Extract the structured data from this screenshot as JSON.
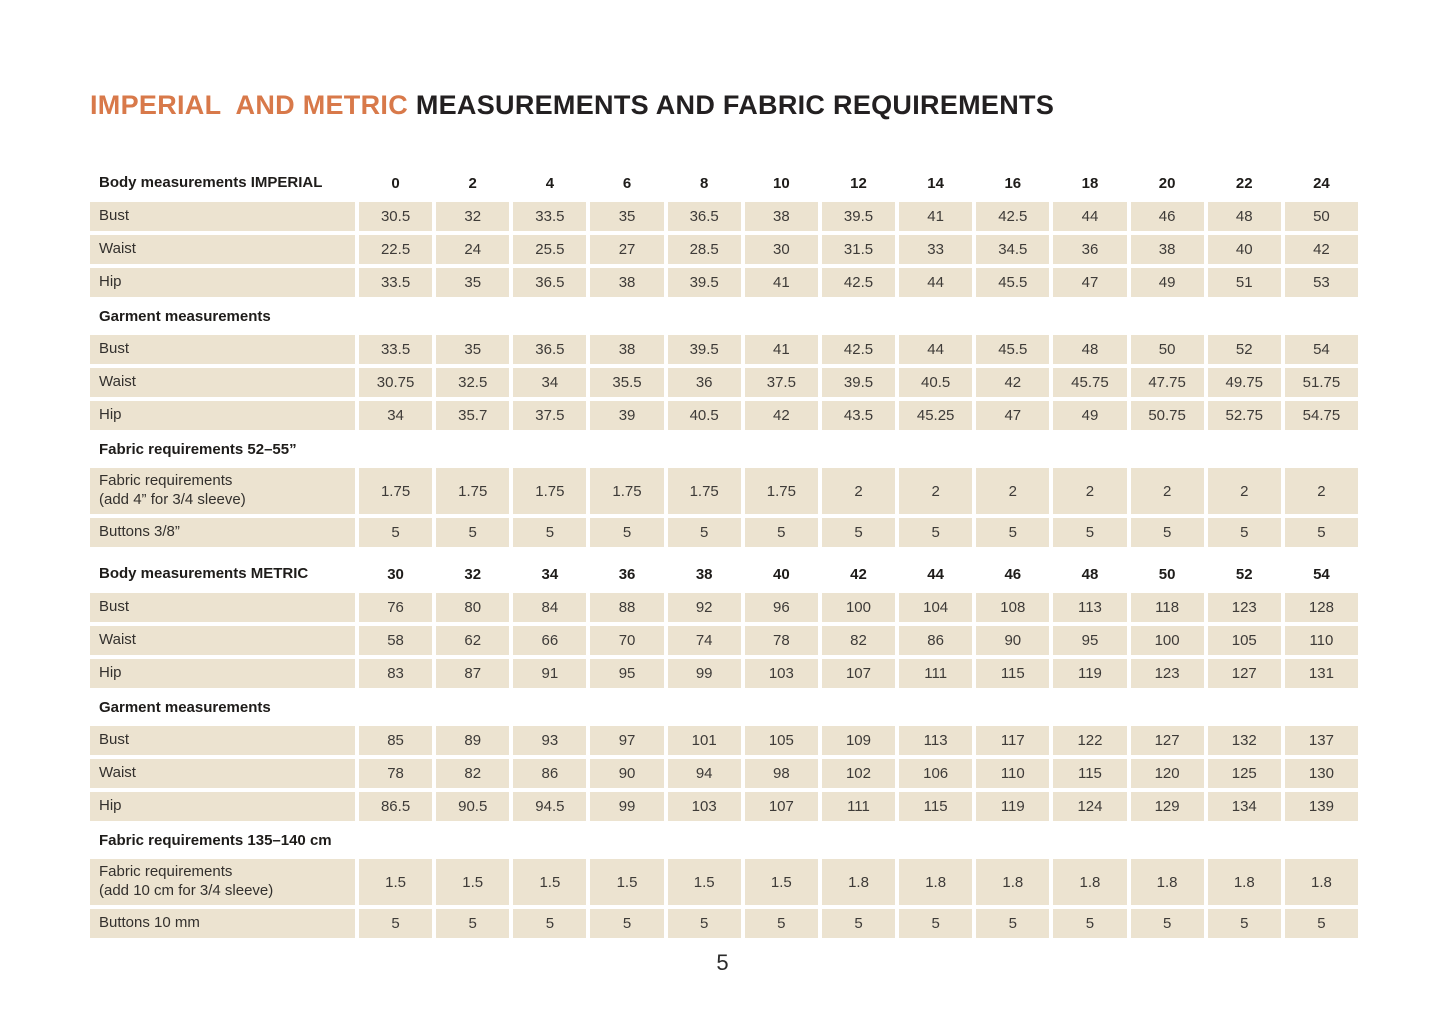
{
  "header": {
    "title_accent": "IMPERIAL  AND METRIC ",
    "title_main": "MEASUREMENTS AND FABRIC REQUIREMENTS"
  },
  "colors": {
    "accent_orange": "#D8794A",
    "cell_beige": "#ECE3D0",
    "text_dark": "#232021"
  },
  "footer": {
    "page_number": "5"
  },
  "table": {
    "sections": [
      {
        "kind": "size-header",
        "label": "Body measurements IMPERIAL",
        "values": [
          "0",
          "2",
          "4",
          "6",
          "8",
          "10",
          "12",
          "14",
          "16",
          "18",
          "20",
          "22",
          "24"
        ]
      },
      {
        "kind": "data",
        "label": "Bust",
        "values": [
          "30.5",
          "32",
          "33.5",
          "35",
          "36.5",
          "38",
          "39.5",
          "41",
          "42.5",
          "44",
          "46",
          "48",
          "50"
        ]
      },
      {
        "kind": "data",
        "label": "Waist",
        "values": [
          "22.5",
          "24",
          "25.5",
          "27",
          "28.5",
          "30",
          "31.5",
          "33",
          "34.5",
          "36",
          "38",
          "40",
          "42"
        ]
      },
      {
        "kind": "data",
        "label": "Hip",
        "values": [
          "33.5",
          "35",
          "36.5",
          "38",
          "39.5",
          "41",
          "42.5",
          "44",
          "45.5",
          "47",
          "49",
          "51",
          "53"
        ]
      },
      {
        "kind": "heading",
        "label": "Garment measurements"
      },
      {
        "kind": "data",
        "label": "Bust",
        "values": [
          "33.5",
          "35",
          "36.5",
          "38",
          "39.5",
          "41",
          "42.5",
          "44",
          "45.5",
          "48",
          "50",
          "52",
          "54"
        ]
      },
      {
        "kind": "data",
        "label": "Waist",
        "values": [
          "30.75",
          "32.5",
          "34",
          "35.5",
          "36",
          "37.5",
          "39.5",
          "40.5",
          "42",
          "45.75",
          "47.75",
          "49.75",
          "51.75"
        ]
      },
      {
        "kind": "data",
        "label": "Hip",
        "values": [
          "34",
          "35.7",
          "37.5",
          "39",
          "40.5",
          "42",
          "43.5",
          "45.25",
          "47",
          "49",
          "50.75",
          "52.75",
          "54.75"
        ]
      },
      {
        "kind": "heading",
        "label": "Fabric requirements 52–55”"
      },
      {
        "kind": "data",
        "tall": true,
        "label": "Fabric requirements",
        "sublabel": "(add 4” for 3/4 sleeve)",
        "values": [
          "1.75",
          "1.75",
          "1.75",
          "1.75",
          "1.75",
          "1.75",
          "2",
          "2",
          "2",
          "2",
          "2",
          "2",
          "2"
        ]
      },
      {
        "kind": "data",
        "label": "Buttons 3/8”",
        "values": [
          "5",
          "5",
          "5",
          "5",
          "5",
          "5",
          "5",
          "5",
          "5",
          "5",
          "5",
          "5",
          "5"
        ]
      },
      {
        "kind": "size-header",
        "group_gap": true,
        "label": "Body measurements METRIC",
        "values": [
          "30",
          "32",
          "34",
          "36",
          "38",
          "40",
          "42",
          "44",
          "46",
          "48",
          "50",
          "52",
          "54"
        ]
      },
      {
        "kind": "data",
        "label": "Bust",
        "values": [
          "76",
          "80",
          "84",
          "88",
          "92",
          "96",
          "100",
          "104",
          "108",
          "113",
          "118",
          "123",
          "128"
        ]
      },
      {
        "kind": "data",
        "label": "Waist",
        "values": [
          "58",
          "62",
          "66",
          "70",
          "74",
          "78",
          "82",
          "86",
          "90",
          "95",
          "100",
          "105",
          "110"
        ]
      },
      {
        "kind": "data",
        "label": "Hip",
        "values": [
          "83",
          "87",
          "91",
          "95",
          "99",
          "103",
          "107",
          "111",
          "115",
          "119",
          "123",
          "127",
          "131"
        ]
      },
      {
        "kind": "heading",
        "label": "Garment measurements"
      },
      {
        "kind": "data",
        "label": "Bust",
        "values": [
          "85",
          "89",
          "93",
          "97",
          "101",
          "105",
          "109",
          "113",
          "117",
          "122",
          "127",
          "132",
          "137"
        ]
      },
      {
        "kind": "data",
        "label": "Waist",
        "values": [
          "78",
          "82",
          "86",
          "90",
          "94",
          "98",
          "102",
          "106",
          "110",
          "115",
          "120",
          "125",
          "130"
        ]
      },
      {
        "kind": "data",
        "label": "Hip",
        "values": [
          "86.5",
          "90.5",
          "94.5",
          "99",
          "103",
          "107",
          "111",
          "115",
          "119",
          "124",
          "129",
          "134",
          "139"
        ]
      },
      {
        "kind": "heading",
        "label": "Fabric requirements 135–140 cm"
      },
      {
        "kind": "data",
        "tall": true,
        "label": "Fabric requirements",
        "sublabel": "(add 10 cm for 3/4 sleeve)",
        "values": [
          "1.5",
          "1.5",
          "1.5",
          "1.5",
          "1.5",
          "1.5",
          "1.8",
          "1.8",
          "1.8",
          "1.8",
          "1.8",
          "1.8",
          "1.8"
        ]
      },
      {
        "kind": "data",
        "label": "Buttons 10 mm",
        "values": [
          "5",
          "5",
          "5",
          "5",
          "5",
          "5",
          "5",
          "5",
          "5",
          "5",
          "5",
          "5",
          "5"
        ]
      }
    ]
  }
}
